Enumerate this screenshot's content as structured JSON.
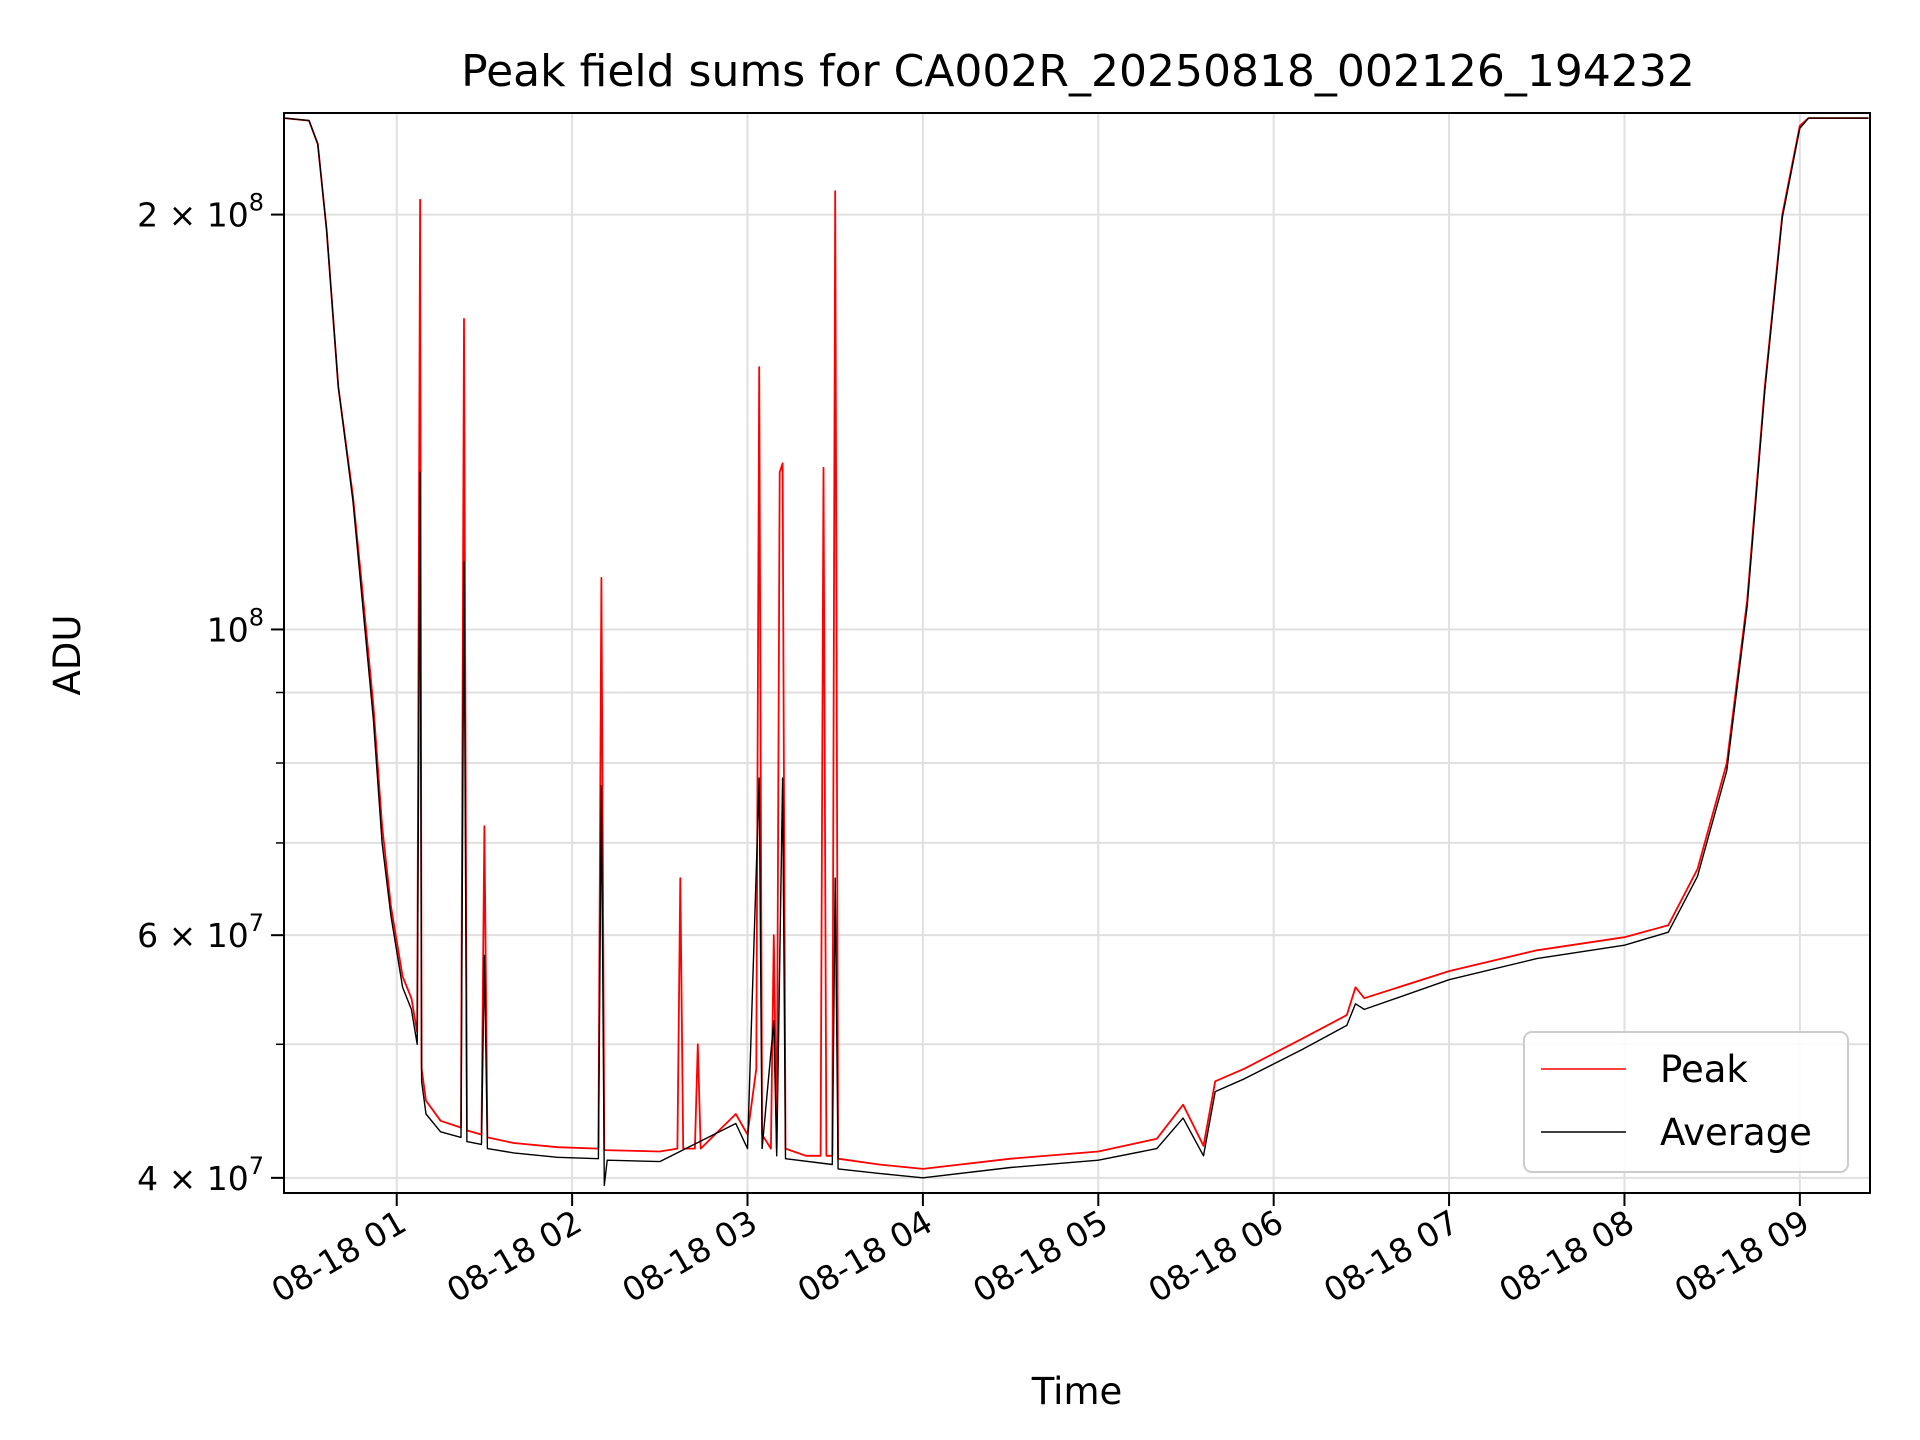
{
  "chart_data": {
    "type": "line",
    "title": "Peak field sums for CA002R_20250818_002126_194232",
    "xlabel": "Time",
    "ylabel": "ADU",
    "y_scale": "log",
    "grid": true,
    "legend_position": "lower right",
    "xlim": [
      "2025-08-18 00:21:26",
      "2025-08-18 09:24:00"
    ],
    "ylim": [
      39000000,
      237000000
    ],
    "x_ticks": [
      "08-18 01",
      "08-18 02",
      "08-18 03",
      "08-18 04",
      "08-18 05",
      "08-18 06",
      "08-18 07",
      "08-18 08",
      "08-18 09"
    ],
    "y_ticks": [
      "2 × 10^8",
      "10^8",
      "6 × 10^7",
      "4 × 10^7"
    ],
    "x_ticks_time": [
      "2025-08-18 01:00",
      "2025-08-18 02:00",
      "2025-08-18 03:00",
      "2025-08-18 04:00",
      "2025-08-18 05:00",
      "2025-08-18 06:00",
      "2025-08-18 07:00",
      "2025-08-18 08:00",
      "2025-08-18 09:00"
    ],
    "y_tick_values": [
      200000000,
      100000000,
      60000000,
      40000000
    ],
    "colors": {
      "peak": "#ff0000",
      "average": "#000000"
    },
    "series": [
      {
        "name": "Peak",
        "color": "#ff0000",
        "points": [
          [
            "2025-08-18 00:21:30",
            235000000
          ],
          [
            "2025-08-18 00:30:00",
            234000000
          ],
          [
            "2025-08-18 00:33:00",
            225000000
          ],
          [
            "2025-08-18 00:36:00",
            195000000
          ],
          [
            "2025-08-18 00:40:00",
            150000000
          ],
          [
            "2025-08-18 00:45:00",
            125000000
          ],
          [
            "2025-08-18 00:48:00",
            108000000
          ],
          [
            "2025-08-18 00:52:00",
            88000000
          ],
          [
            "2025-08-18 00:55:00",
            72000000
          ],
          [
            "2025-08-18 00:58:00",
            63000000
          ],
          [
            "2025-08-18 01:02:00",
            56000000
          ],
          [
            "2025-08-18 01:05:00",
            54000000
          ],
          [
            "2025-08-18 01:07:00",
            51000000
          ],
          [
            "2025-08-18 01:08:00",
            205000000
          ],
          [
            "2025-08-18 01:08:30",
            48000000
          ],
          [
            "2025-08-18 01:10:00",
            45500000
          ],
          [
            "2025-08-18 01:15:00",
            44000000
          ],
          [
            "2025-08-18 01:22:00",
            43500000
          ],
          [
            "2025-08-18 01:23:00",
            168000000
          ],
          [
            "2025-08-18 01:24:00",
            43300000
          ],
          [
            "2025-08-18 01:29:00",
            43000000
          ],
          [
            "2025-08-18 01:30:00",
            72000000
          ],
          [
            "2025-08-18 01:31:00",
            42800000
          ],
          [
            "2025-08-18 01:40:00",
            42400000
          ],
          [
            "2025-08-18 01:55:00",
            42100000
          ],
          [
            "2025-08-18 02:09:00",
            42000000
          ],
          [
            "2025-08-18 02:10:00",
            109000000
          ],
          [
            "2025-08-18 02:11:00",
            41900000
          ],
          [
            "2025-08-18 02:30:00",
            41800000
          ],
          [
            "2025-08-18 02:36:00",
            42000000
          ],
          [
            "2025-08-18 02:37:00",
            66000000
          ],
          [
            "2025-08-18 02:38:00",
            42000000
          ],
          [
            "2025-08-18 02:42:00",
            42000000
          ],
          [
            "2025-08-18 02:43:00",
            50000000
          ],
          [
            "2025-08-18 02:44:00",
            42000000
          ],
          [
            "2025-08-18 02:56:00",
            44500000
          ],
          [
            "2025-08-18 03:00:00",
            43000000
          ],
          [
            "2025-08-18 03:03:00",
            48000000
          ],
          [
            "2025-08-18 03:04:00",
            155000000
          ],
          [
            "2025-08-18 03:05:00",
            43000000
          ],
          [
            "2025-08-18 03:08:00",
            42000000
          ],
          [
            "2025-08-18 03:09:00",
            60000000
          ],
          [
            "2025-08-18 03:10:00",
            42000000
          ],
          [
            "2025-08-18 03:11:00",
            130000000
          ],
          [
            "2025-08-18 03:12:00",
            132000000
          ],
          [
            "2025-08-18 03:13:00",
            42000000
          ],
          [
            "2025-08-18 03:20:00",
            41500000
          ],
          [
            "2025-08-18 03:25:00",
            41500000
          ],
          [
            "2025-08-18 03:26:00",
            131000000
          ],
          [
            "2025-08-18 03:27:00",
            41500000
          ],
          [
            "2025-08-18 03:29:00",
            41500000
          ],
          [
            "2025-08-18 03:30:00",
            208000000
          ],
          [
            "2025-08-18 03:31:00",
            41300000
          ],
          [
            "2025-08-18 03:45:00",
            40900000
          ],
          [
            "2025-08-18 04:00:00",
            40600000
          ],
          [
            "2025-08-18 04:30:00",
            41300000
          ],
          [
            "2025-08-18 05:00:00",
            41800000
          ],
          [
            "2025-08-18 05:20:00",
            42700000
          ],
          [
            "2025-08-18 05:29:00",
            45200000
          ],
          [
            "2025-08-18 05:36:00",
            42200000
          ],
          [
            "2025-08-18 05:40:00",
            47000000
          ],
          [
            "2025-08-18 05:50:00",
            48000000
          ],
          [
            "2025-08-18 06:10:00",
            50500000
          ],
          [
            "2025-08-18 06:25:00",
            52500000
          ],
          [
            "2025-08-18 06:28:00",
            55000000
          ],
          [
            "2025-08-18 06:31:00",
            54000000
          ],
          [
            "2025-08-18 07:00:00",
            56500000
          ],
          [
            "2025-08-18 07:30:00",
            58500000
          ],
          [
            "2025-08-18 08:00:00",
            59800000
          ],
          [
            "2025-08-18 08:15:00",
            61000000
          ],
          [
            "2025-08-18 08:25:00",
            67000000
          ],
          [
            "2025-08-18 08:35:00",
            80000000
          ],
          [
            "2025-08-18 08:42:00",
            105000000
          ],
          [
            "2025-08-18 08:48:00",
            150000000
          ],
          [
            "2025-08-18 08:54:00",
            200000000
          ],
          [
            "2025-08-18 09:00:00",
            232000000
          ],
          [
            "2025-08-18 09:03:00",
            235000000
          ],
          [
            "2025-08-18 09:23:30",
            235000000
          ]
        ]
      },
      {
        "name": "Average",
        "color": "#000000",
        "points": [
          [
            "2025-08-18 00:21:30",
            235000000
          ],
          [
            "2025-08-18 00:30:00",
            234000000
          ],
          [
            "2025-08-18 00:33:00",
            225000000
          ],
          [
            "2025-08-18 00:36:00",
            195000000
          ],
          [
            "2025-08-18 00:40:00",
            150000000
          ],
          [
            "2025-08-18 00:45:00",
            124000000
          ],
          [
            "2025-08-18 00:48:00",
            106000000
          ],
          [
            "2025-08-18 00:52:00",
            86000000
          ],
          [
            "2025-08-18 00:55:00",
            70000000
          ],
          [
            "2025-08-18 00:58:00",
            62000000
          ],
          [
            "2025-08-18 01:02:00",
            55000000
          ],
          [
            "2025-08-18 01:05:00",
            53000000
          ],
          [
            "2025-08-18 01:07:00",
            50000000
          ],
          [
            "2025-08-18 01:08:00",
            130000000
          ],
          [
            "2025-08-18 01:08:30",
            47000000
          ],
          [
            "2025-08-18 01:10:00",
            44500000
          ],
          [
            "2025-08-18 01:15:00",
            43200000
          ],
          [
            "2025-08-18 01:22:00",
            42800000
          ],
          [
            "2025-08-18 01:23:00",
            112000000
          ],
          [
            "2025-08-18 01:24:00",
            42500000
          ],
          [
            "2025-08-18 01:29:00",
            42300000
          ],
          [
            "2025-08-18 01:30:00",
            58000000
          ],
          [
            "2025-08-18 01:31:00",
            42000000
          ],
          [
            "2025-08-18 01:40:00",
            41700000
          ],
          [
            "2025-08-18 01:55:00",
            41400000
          ],
          [
            "2025-08-18 02:09:00",
            41300000
          ],
          [
            "2025-08-18 02:10:00",
            77000000
          ],
          [
            "2025-08-18 02:11:00",
            39500000
          ],
          [
            "2025-08-18 02:12:00",
            41200000
          ],
          [
            "2025-08-18 02:30:00",
            41100000
          ],
          [
            "2025-08-18 02:56:00",
            43800000
          ],
          [
            "2025-08-18 03:00:00",
            42000000
          ],
          [
            "2025-08-18 03:04:00",
            78000000
          ],
          [
            "2025-08-18 03:05:00",
            42000000
          ],
          [
            "2025-08-18 03:09:00",
            52000000
          ],
          [
            "2025-08-18 03:10:00",
            41500000
          ],
          [
            "2025-08-18 03:12:00",
            78000000
          ],
          [
            "2025-08-18 03:13:00",
            41300000
          ],
          [
            "2025-08-18 03:29:00",
            40900000
          ],
          [
            "2025-08-18 03:30:00",
            66000000
          ],
          [
            "2025-08-18 03:31:00",
            40600000
          ],
          [
            "2025-08-18 03:45:00",
            40300000
          ],
          [
            "2025-08-18 04:00:00",
            40000000
          ],
          [
            "2025-08-18 04:30:00",
            40700000
          ],
          [
            "2025-08-18 05:00:00",
            41200000
          ],
          [
            "2025-08-18 05:20:00",
            42000000
          ],
          [
            "2025-08-18 05:29:00",
            44200000
          ],
          [
            "2025-08-18 05:36:00",
            41500000
          ],
          [
            "2025-08-18 05:40:00",
            46200000
          ],
          [
            "2025-08-18 05:50:00",
            47200000
          ],
          [
            "2025-08-18 06:10:00",
            49600000
          ],
          [
            "2025-08-18 06:25:00",
            51600000
          ],
          [
            "2025-08-18 06:28:00",
            53500000
          ],
          [
            "2025-08-18 06:31:00",
            53000000
          ],
          [
            "2025-08-18 07:00:00",
            55700000
          ],
          [
            "2025-08-18 07:30:00",
            57700000
          ],
          [
            "2025-08-18 08:00:00",
            59000000
          ],
          [
            "2025-08-18 08:15:00",
            60300000
          ],
          [
            "2025-08-18 08:25:00",
            66200000
          ],
          [
            "2025-08-18 08:35:00",
            79000000
          ],
          [
            "2025-08-18 08:42:00",
            104000000
          ],
          [
            "2025-08-18 08:48:00",
            149000000
          ],
          [
            "2025-08-18 08:54:00",
            199000000
          ],
          [
            "2025-08-18 09:00:00",
            231000000
          ],
          [
            "2025-08-18 09:03:00",
            235000000
          ],
          [
            "2025-08-18 09:23:30",
            235000000
          ]
        ]
      }
    ]
  }
}
